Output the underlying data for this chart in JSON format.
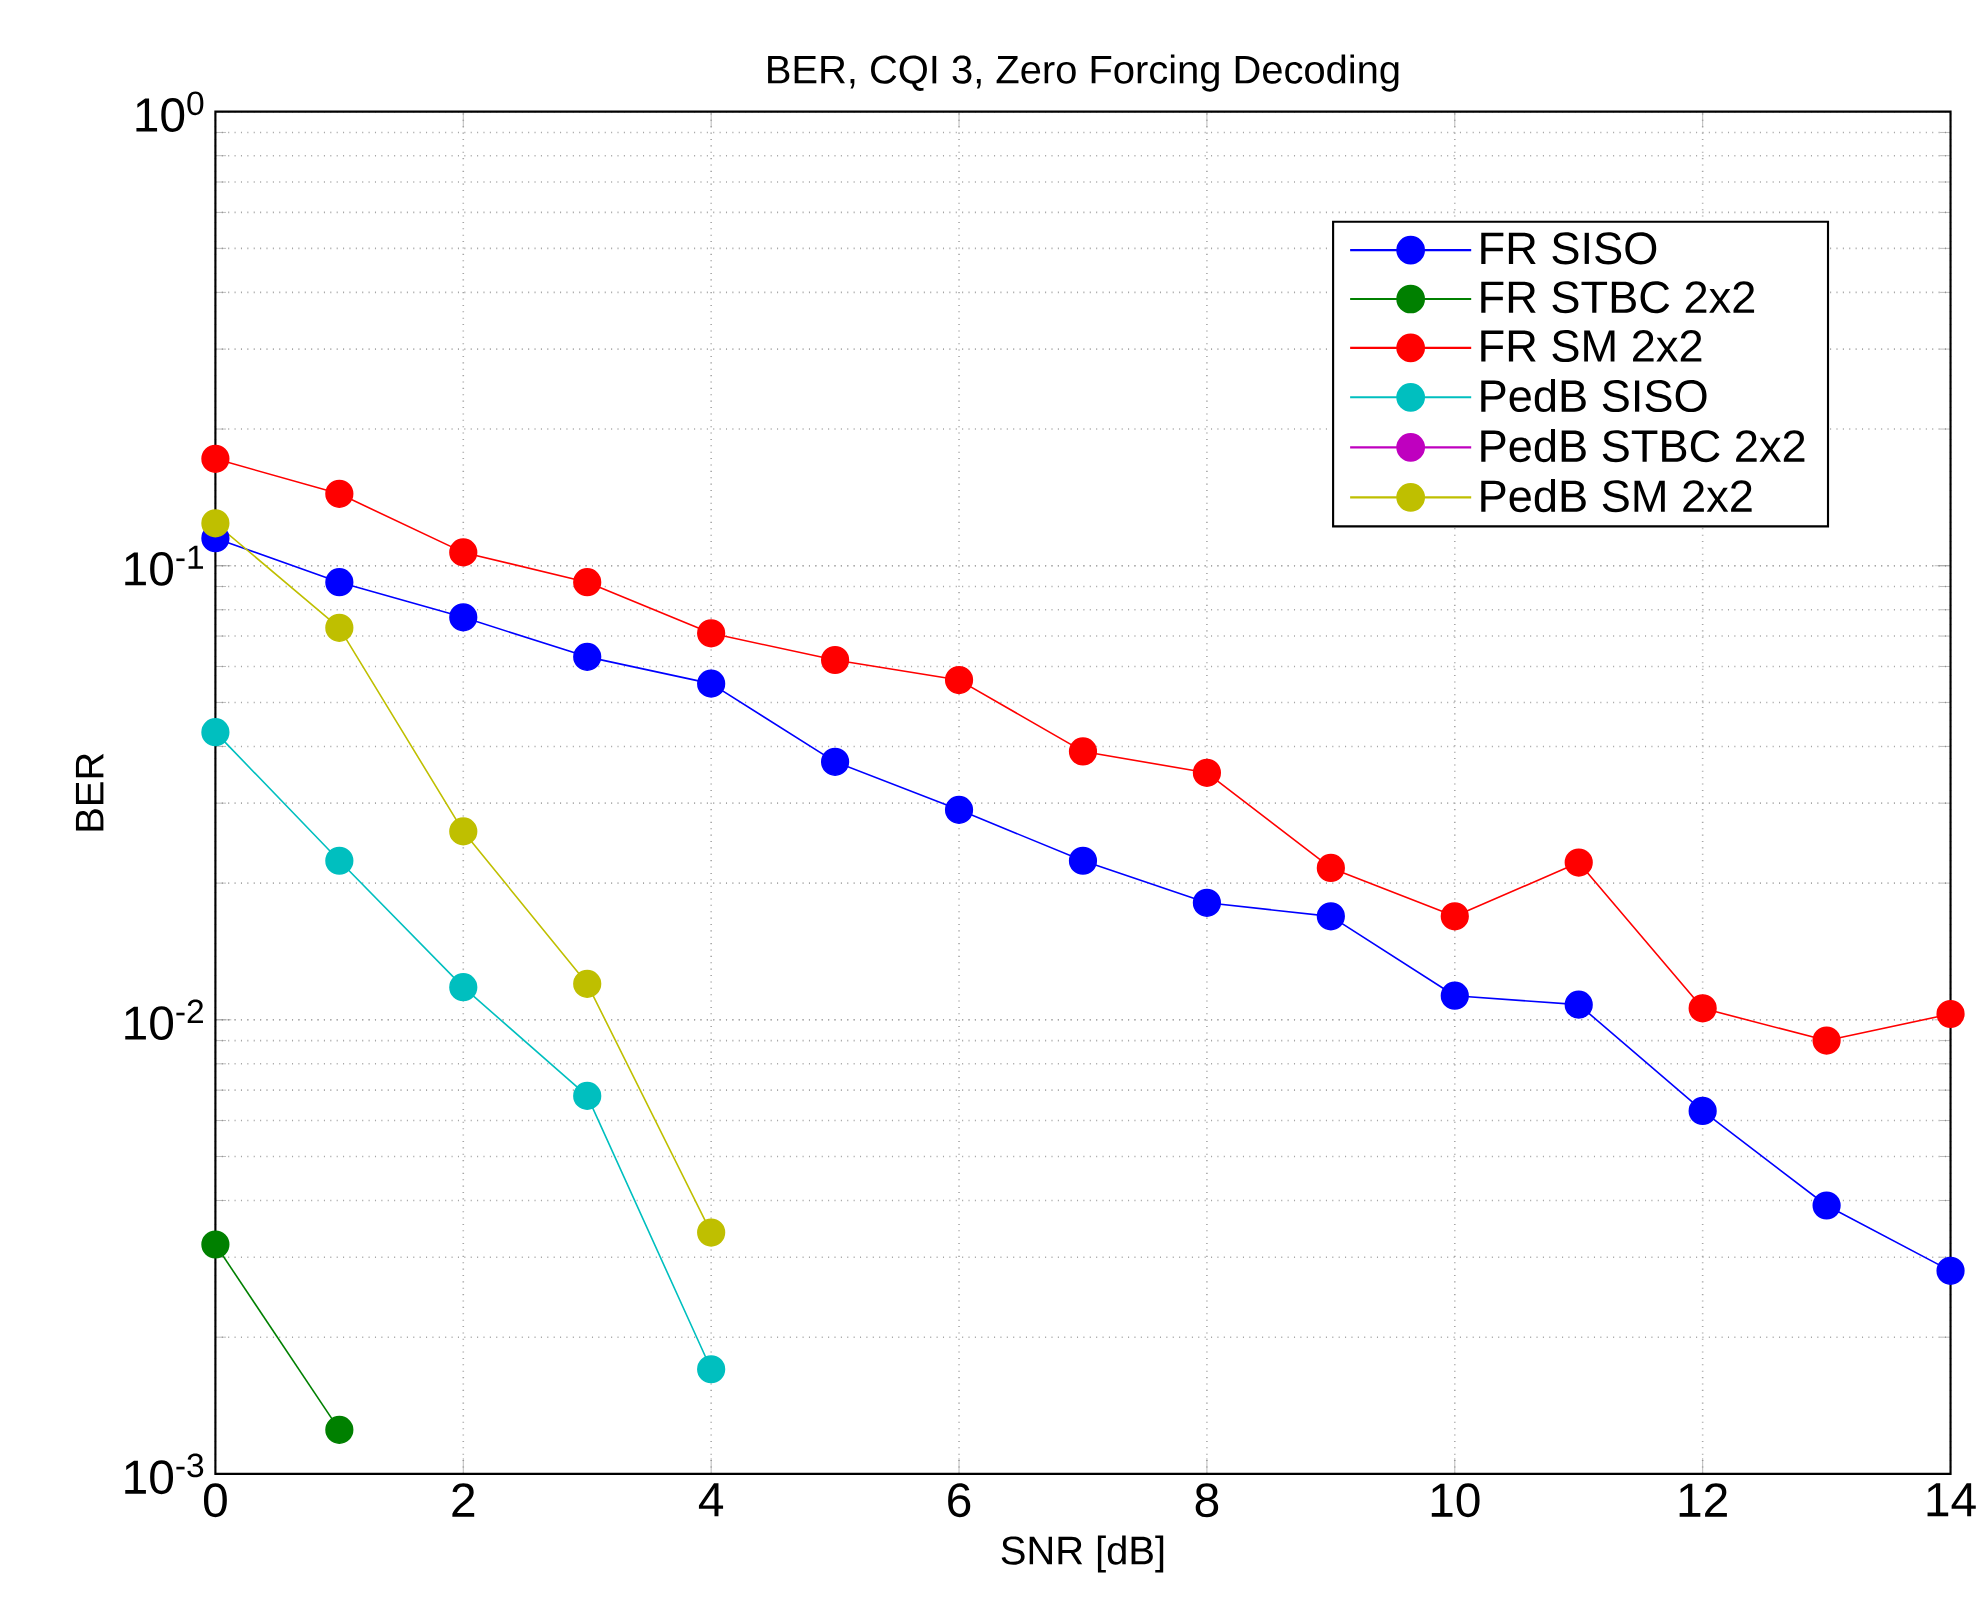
{
  "chart_data": {
    "type": "line",
    "title": "BER, CQI 3,  Zero Forcing Decoding",
    "xlabel": "SNR [dB]",
    "ylabel": "BER",
    "log": true,
    "grid": true,
    "legend": "top right",
    "marker": "circle",
    "line_style": "solid",
    "xlim": [
      0,
      14
    ],
    "xticks": [
      0,
      2,
      4,
      6,
      8,
      10,
      12,
      14
    ],
    "ylim": [
      0.001,
      1
    ],
    "yticks": [
      {
        "value": 0.001,
        "label": "10$^{-3}$"
      },
      {
        "value": 0.01,
        "label": "10$^{-2}$"
      },
      {
        "value": 0.1,
        "label": "10$^{-1}$"
      },
      {
        "value": 1,
        "label": "10$^{0}$"
      }
    ],
    "series": [
      {
        "name": "FR SISO",
        "color": "#0000ff",
        "x": [
          0,
          1,
          2,
          3,
          4,
          5,
          6,
          7,
          8,
          9,
          10,
          11,
          12,
          13,
          14
        ],
        "values": [
          0.115,
          0.092,
          0.077,
          0.063,
          0.055,
          0.037,
          0.029,
          0.0224,
          0.0181,
          0.0169,
          0.0113,
          0.0108,
          0.0063,
          0.0039,
          0.0028
        ]
      },
      {
        "name": "FR STBC 2x2",
        "color": "#008000",
        "x": [
          0,
          1
        ],
        "values": [
          0.0032,
          0.00125
        ]
      },
      {
        "name": "FR SM 2x2",
        "color": "#ff0000",
        "x": [
          0,
          1,
          2,
          3,
          4,
          5,
          6,
          7,
          8,
          9,
          10,
          11,
          12,
          13,
          14
        ],
        "values": [
          0.172,
          0.144,
          0.107,
          0.092,
          0.071,
          0.062,
          0.056,
          0.039,
          0.035,
          0.0216,
          0.0169,
          0.0222,
          0.0106,
          0.009,
          0.0103
        ]
      },
      {
        "name": "PedB SISO",
        "color": "#00bfbf",
        "x": [
          0,
          1,
          2,
          3,
          4
        ],
        "values": [
          0.043,
          0.0224,
          0.0118,
          0.0068,
          0.0017
        ]
      },
      {
        "name": "PedB  STBC 2x2",
        "color": "#bf00bf"
      },
      {
        "name": "PedB SM 2x2",
        "color": "#bfbf00",
        "x": [
          0,
          1,
          2,
          3,
          4
        ],
        "values": [
          0.124,
          0.073,
          0.026,
          0.012,
          0.0034
        ]
      }
    ]
  }
}
